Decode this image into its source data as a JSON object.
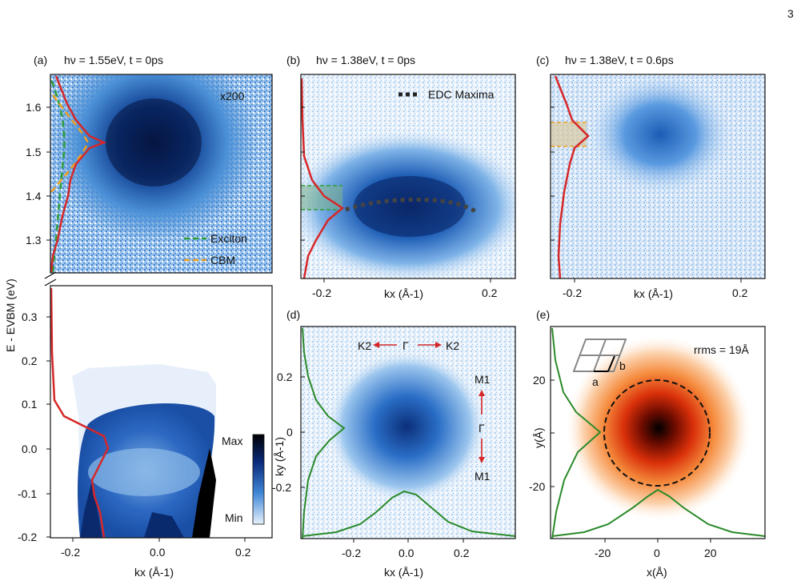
{
  "page_number": "3",
  "colors": {
    "intensity_blue": "#0b3d91",
    "light_blue": "#d6e8f8",
    "edc_red": "#d62728",
    "exciton_green": "#2e9e3c",
    "cbm_orange": "#f0a020",
    "profile_green": "#2a8a2a",
    "heat_dark": "#000000",
    "heat_red": "#c81e00",
    "heat_light": "#fde6d0"
  },
  "panels": {
    "a": {
      "label": "(a)",
      "title": "hν = 1.55eV, t = 0ps",
      "scale_note": "x200",
      "legend": [
        "Exciton",
        "CBM"
      ]
    },
    "b": {
      "label": "(b)",
      "title": "hν = 1.38eV, t = 0ps",
      "legend": [
        "EDC Maxima"
      ]
    },
    "c": {
      "label": "(c)",
      "title": "hν = 1.38eV, t = 0.6ps"
    },
    "d": {
      "label": "(d)",
      "annotations": [
        "K2",
        "Γ",
        "K2",
        "M1",
        "Γ",
        "M1"
      ]
    },
    "e": {
      "label": "(e)",
      "rrms": "rrms = 19Å",
      "lattice": [
        "a",
        "b"
      ]
    }
  },
  "colorbar": {
    "max_label": "Max",
    "min_label": "Min"
  },
  "chart_data": [
    {
      "panel": "a",
      "type": "heatmap",
      "xlabel": "kx (Å-1)",
      "ylabel": "E - EVBM (eV)",
      "xticks": [
        "-0.2",
        "0.0",
        "0.2"
      ],
      "yticks_upper": [
        "1.3",
        "1.4",
        "1.5",
        "1.6"
      ],
      "yticks_lower": [
        "-0.2",
        "-0.1",
        "0.0",
        "0.1",
        "0.2",
        "0.3"
      ],
      "xlim": [
        -0.25,
        0.25
      ],
      "ylim_upper": [
        1.24,
        1.67
      ],
      "ylim_lower": [
        -0.2,
        0.36
      ],
      "axis_break": true,
      "exciton_peak_eV": 1.52,
      "cbm_peak_eV": 1.52,
      "edc_peak_eV_upper": 1.52,
      "edc_peak_eV_lower": -0.04
    },
    {
      "panel": "b",
      "type": "heatmap",
      "xlabel": "kx (Å-1)",
      "xticks": [
        "-0.2",
        "0.2"
      ],
      "xlim": [
        -0.25,
        0.25
      ],
      "ylim": [
        1.24,
        1.67
      ],
      "edc_peak_eV": 1.38,
      "edc_maxima": {
        "x": [
          -0.15,
          -0.1,
          -0.05,
          0.0,
          0.05,
          0.1,
          0.15
        ],
        "y": [
          1.38,
          1.39,
          1.395,
          1.395,
          1.395,
          1.39,
          1.38
        ]
      }
    },
    {
      "panel": "c",
      "type": "heatmap",
      "xlabel": "kx (Å-1)",
      "xticks": [
        "-0.2",
        "0.2"
      ],
      "xlim": [
        -0.25,
        0.25
      ],
      "ylim": [
        1.24,
        1.67
      ],
      "edc_peak_eV": 1.52
    },
    {
      "panel": "d",
      "type": "heatmap",
      "xlabel": "kx (Å-1)",
      "ylabel": "ky (Å-1)",
      "xticks": [
        "-0.2",
        "0.0",
        "0.2"
      ],
      "yticks": [
        "-0.2",
        "0",
        "0.2"
      ],
      "xlim": [
        -0.39,
        0.39
      ],
      "ylim": [
        -0.39,
        0.39
      ]
    },
    {
      "panel": "e",
      "type": "heatmap",
      "xlabel": "x(Å)",
      "ylabel": "y(Å)",
      "xticks": [
        "-20",
        "0",
        "20"
      ],
      "yticks": [
        "-20",
        "0",
        "20"
      ],
      "xlim": [
        -40,
        40
      ],
      "ylim": [
        -40,
        40
      ],
      "circle_radius_A": 19
    }
  ]
}
